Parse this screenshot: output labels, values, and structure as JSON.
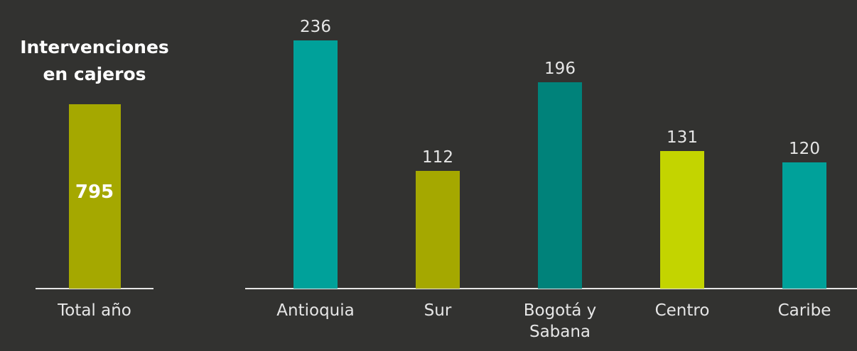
{
  "chart_data": [
    {
      "type": "bar",
      "title": "Intervenciones en cajeros",
      "categories": [
        "Total año"
      ],
      "values": [
        795
      ],
      "color": "#a5a800"
    },
    {
      "type": "bar",
      "categories": [
        "Antioquia",
        "Sur",
        "Bogotá y Sabana",
        "Centro",
        "Caribe"
      ],
      "values": [
        236,
        112,
        196,
        131,
        120
      ],
      "colors": [
        "#00a19a",
        "#a5a800",
        "#00827a",
        "#c3d400",
        "#00a19a"
      ]
    }
  ]
}
